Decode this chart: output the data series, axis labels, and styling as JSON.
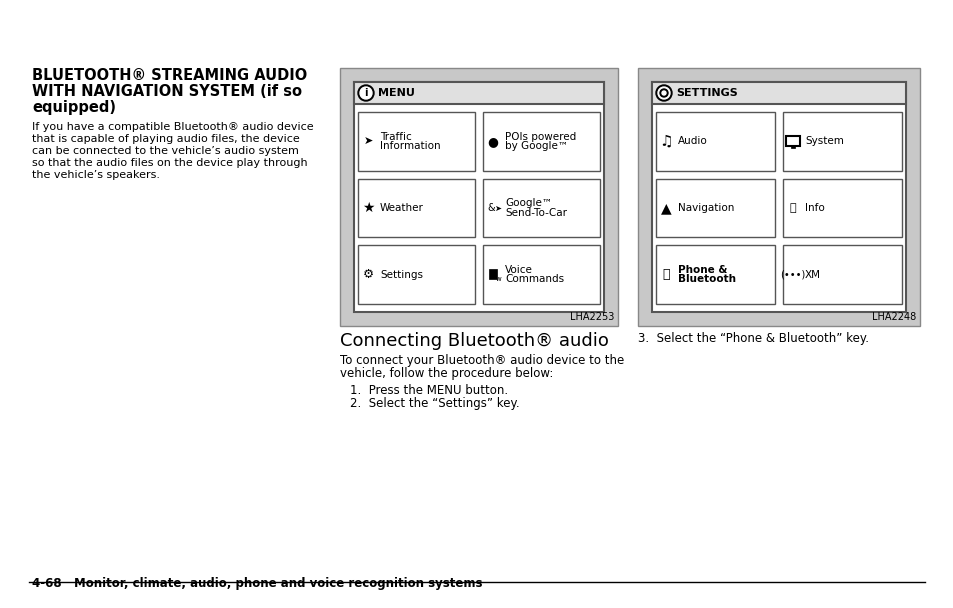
{
  "bg_color": "#ffffff",
  "title_line1": "BLUETOOTH® STREAMING AUDIO",
  "title_line2": "WITH NAVIGATION SYSTEM (if so",
  "title_line3": "equipped)",
  "body_text": [
    "If you have a compatible Bluetooth® audio device",
    "that is capable of playing audio files, the device",
    "can be connected to the vehicle’s audio system",
    "so that the audio files on the device play through",
    "the vehicle’s speakers."
  ],
  "subtitle": "Connecting Bluetooth® audio",
  "connect_text": [
    "To connect your Bluetooth® audio device to the",
    "vehicle, follow the procedure below:"
  ],
  "step1": "1.  Press the MENU button.",
  "step2": "2.  Select the “Settings” key.",
  "step3": "3.  Select the “Phone & Bluetooth” key.",
  "footer": "4-68   Monitor, climate, audio, phone and voice recognition systems",
  "menu_label": "MENU",
  "menu_buttons": [
    [
      [
        "Traffic\nInformation",
        "traffic"
      ],
      [
        "POIs powered\nby Google™",
        "poi"
      ]
    ],
    [
      [
        "Weather",
        "weather"
      ],
      [
        "Google™\nSend-To-Car",
        "google"
      ]
    ],
    [
      [
        "Settings",
        "settings"
      ],
      [
        "Voice\nCommands",
        "voice"
      ]
    ]
  ],
  "menu_caption": "LHA2253",
  "settings_label": "SETTINGS",
  "settings_buttons": [
    [
      [
        "Audio",
        "audio"
      ],
      [
        "System",
        "system"
      ]
    ],
    [
      [
        "Navigation",
        "nav"
      ],
      [
        "Info",
        "info"
      ]
    ],
    [
      [
        "Phone &\nBluetooth",
        "phone"
      ],
      [
        "XM",
        "xm"
      ]
    ]
  ],
  "settings_caption": "LHA2248",
  "outer_bg": "#c8c8c8",
  "inner_bg": "#ffffff",
  "header_bg": "#e0e0e0",
  "border_color": "#555555",
  "outer_border": "#888888"
}
